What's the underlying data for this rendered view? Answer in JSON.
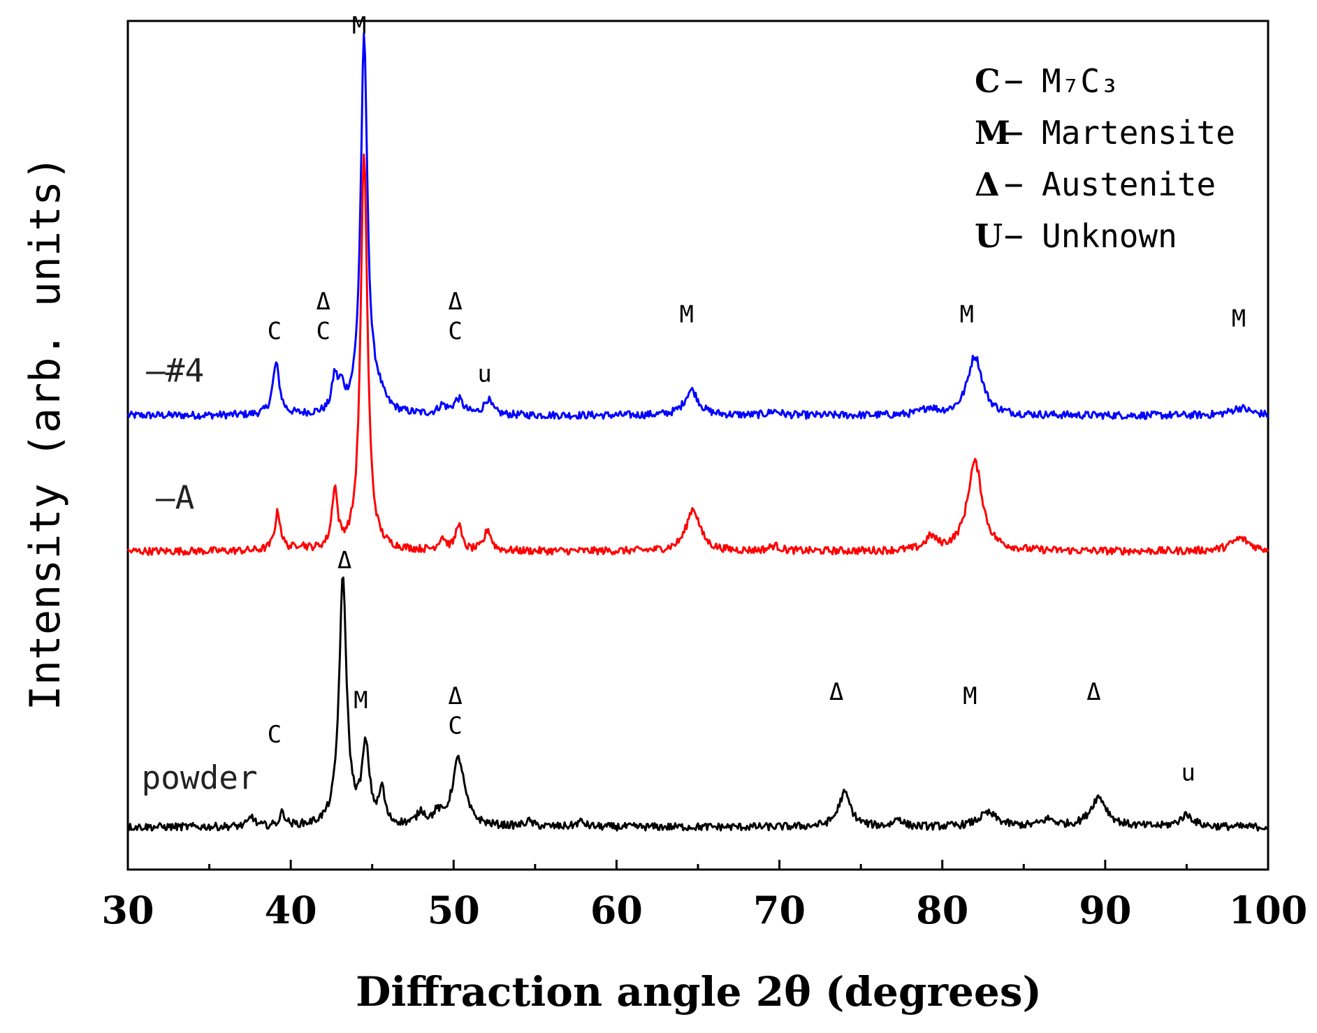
{
  "chart_data": {
    "type": "line",
    "title": "",
    "xlabel": "Diffraction angle 2θ (degrees)",
    "ylabel": "Intensity  (arb. units)",
    "xlim": [
      30,
      100
    ],
    "ylim": [
      0,
      100
    ],
    "x_ticks": [
      30,
      40,
      50,
      60,
      70,
      80,
      90,
      100
    ],
    "x_tick_labels": [
      "30",
      "40",
      "50",
      "60",
      "70",
      "80",
      "90",
      "100"
    ],
    "grid": false,
    "series": [
      {
        "name": "#4",
        "label": "—#4",
        "color": "#0000ff",
        "baseline": 53.5,
        "peaks": [
          {
            "x": 39.1,
            "h": 6.0,
            "w": 0.25
          },
          {
            "x": 42.7,
            "h": 4.0,
            "w": 0.2
          },
          {
            "x": 43.1,
            "h": 2.5,
            "w": 0.2
          },
          {
            "x": 44.5,
            "h": 44.0,
            "w": 0.25
          },
          {
            "x": 45.3,
            "h": 2.0,
            "w": 0.5
          },
          {
            "x": 49.3,
            "h": 1.0,
            "w": 0.3
          },
          {
            "x": 50.3,
            "h": 1.8,
            "w": 0.35
          },
          {
            "x": 52.1,
            "h": 1.8,
            "w": 0.3
          },
          {
            "x": 64.6,
            "h": 3.0,
            "w": 0.5
          },
          {
            "x": 69.7,
            "h": 0.5,
            "w": 0.4
          },
          {
            "x": 79.2,
            "h": 0.8,
            "w": 0.5
          },
          {
            "x": 82.0,
            "h": 7.0,
            "w": 0.55
          },
          {
            "x": 98.3,
            "h": 0.9,
            "w": 0.7
          }
        ]
      },
      {
        "name": "A",
        "label": "—A",
        "color": "#ff0000",
        "baseline": 37.5,
        "peaks": [
          {
            "x": 39.2,
            "h": 4.5,
            "w": 0.22
          },
          {
            "x": 40.6,
            "h": 0.6,
            "w": 0.3
          },
          {
            "x": 42.7,
            "h": 7.0,
            "w": 0.2
          },
          {
            "x": 44.5,
            "h": 47.0,
            "w": 0.25
          },
          {
            "x": 49.3,
            "h": 1.5,
            "w": 0.25
          },
          {
            "x": 50.3,
            "h": 3.2,
            "w": 0.2
          },
          {
            "x": 52.1,
            "h": 2.5,
            "w": 0.25
          },
          {
            "x": 64.7,
            "h": 5.0,
            "w": 0.5
          },
          {
            "x": 69.7,
            "h": 0.6,
            "w": 0.4
          },
          {
            "x": 79.3,
            "h": 1.5,
            "w": 0.4
          },
          {
            "x": 82.0,
            "h": 10.5,
            "w": 0.55
          },
          {
            "x": 98.3,
            "h": 1.5,
            "w": 0.7
          }
        ]
      },
      {
        "name": "powder",
        "label": "powder",
        "color": "#000000",
        "baseline": 5.0,
        "peaks": [
          {
            "x": 37.6,
            "h": 1.2,
            "w": 0.2
          },
          {
            "x": 39.5,
            "h": 1.6,
            "w": 0.2
          },
          {
            "x": 43.2,
            "h": 29.0,
            "w": 0.28
          },
          {
            "x": 44.6,
            "h": 9.0,
            "w": 0.28
          },
          {
            "x": 45.6,
            "h": 4.0,
            "w": 0.2
          },
          {
            "x": 48.0,
            "h": 1.5,
            "w": 0.3
          },
          {
            "x": 49.0,
            "h": 1.2,
            "w": 0.3
          },
          {
            "x": 50.3,
            "h": 8.0,
            "w": 0.45
          },
          {
            "x": 54.6,
            "h": 0.6,
            "w": 0.3
          },
          {
            "x": 57.8,
            "h": 0.6,
            "w": 0.3
          },
          {
            "x": 74.0,
            "h": 4.0,
            "w": 0.45
          },
          {
            "x": 77.3,
            "h": 1.0,
            "w": 0.3
          },
          {
            "x": 82.8,
            "h": 1.6,
            "w": 0.7
          },
          {
            "x": 86.5,
            "h": 0.8,
            "w": 0.5
          },
          {
            "x": 89.6,
            "h": 3.5,
            "w": 0.6
          },
          {
            "x": 95.0,
            "h": 1.4,
            "w": 0.5
          }
        ]
      }
    ],
    "annotations": [
      {
        "text": "M",
        "x": 44.2,
        "y": 98.5
      },
      {
        "text": "C",
        "x": 39.0,
        "y": 62.5
      },
      {
        "text": "Δ",
        "x": 42.0,
        "y": 66.0
      },
      {
        "text": "C",
        "x": 42.0,
        "y": 62.5
      },
      {
        "text": "Δ",
        "x": 50.1,
        "y": 66.0
      },
      {
        "text": "C",
        "x": 50.1,
        "y": 62.5
      },
      {
        "text": "u",
        "x": 51.9,
        "y": 57.5
      },
      {
        "text": "M",
        "x": 64.3,
        "y": 64.5
      },
      {
        "text": "M",
        "x": 81.5,
        "y": 64.5
      },
      {
        "text": "M",
        "x": 98.2,
        "y": 64.0
      },
      {
        "text": "Δ",
        "x": 43.3,
        "y": 35.5
      },
      {
        "text": "C",
        "x": 39.0,
        "y": 15.0
      },
      {
        "text": "M",
        "x": 44.3,
        "y": 19.0
      },
      {
        "text": "Δ",
        "x": 50.1,
        "y": 19.5
      },
      {
        "text": "C",
        "x": 50.1,
        "y": 16.0
      },
      {
        "text": "Δ",
        "x": 73.5,
        "y": 20.0
      },
      {
        "text": "M",
        "x": 81.7,
        "y": 19.5
      },
      {
        "text": "Δ",
        "x": 89.3,
        "y": 20.0
      },
      {
        "text": "u",
        "x": 95.1,
        "y": 10.5
      }
    ],
    "legend": {
      "placement": "top-right",
      "entries": [
        {
          "symbol": "C",
          "dash": "−",
          "text": "M₇C₃"
        },
        {
          "symbol": "M",
          "dash": "−",
          "text": "Martensite"
        },
        {
          "symbol": "Δ",
          "dash": "−",
          "text": "Austenite"
        },
        {
          "symbol": "U",
          "dash": "−",
          "text": "Unknown"
        }
      ]
    }
  }
}
